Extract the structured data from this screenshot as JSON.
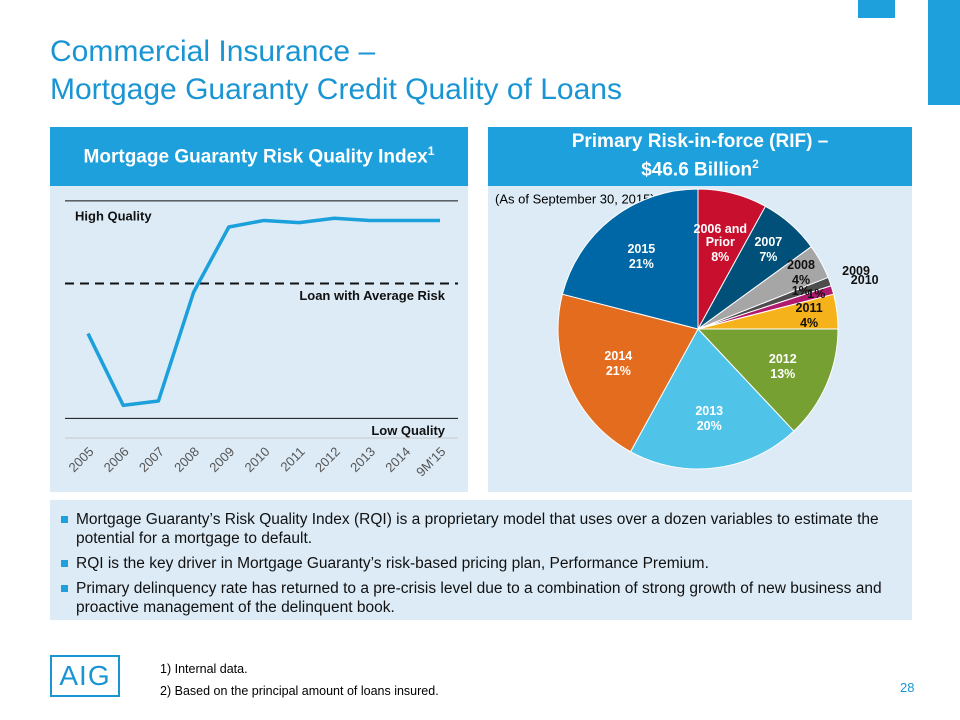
{
  "title": [
    "Commercial Insurance –",
    "Mortgage Guaranty Credit Quality of Loans"
  ],
  "left_panel": {
    "header": "Mortgage Guaranty Risk Quality Index",
    "header_sup": "1"
  },
  "right_panel": {
    "header": [
      "Primary Risk-in-force (RIF) –",
      "$46.6 Billion"
    ],
    "header_sup": "2"
  },
  "chart_data": [
    {
      "type": "line",
      "categories": [
        "2005",
        "2006",
        "2007",
        "2008",
        "2009",
        "2010",
        "2011",
        "2012",
        "2013",
        "2014",
        "9M'15"
      ],
      "values": [
        39,
        6,
        8,
        58,
        88,
        91,
        90,
        92,
        91,
        91,
        91
      ],
      "color": "#1ba0dc",
      "ylim": [
        -9,
        105
      ],
      "reference_lines": [
        {
          "label": "High Quality",
          "value": 100,
          "style": "solid"
        },
        {
          "label": "Loan with Average Risk",
          "value": 62,
          "style": "dashed"
        },
        {
          "label": "Low Quality",
          "value": 0,
          "style": "solid"
        }
      ]
    },
    {
      "type": "pie",
      "subtitle": "(As of September 30, 2015)",
      "categories": [
        "2006 and Prior",
        "2007",
        "2008",
        "2009",
        "2010",
        "2011",
        "2012",
        "2013",
        "2014",
        "2015"
      ],
      "values": [
        8,
        7,
        4,
        1,
        1,
        4,
        13,
        20,
        21,
        21
      ],
      "value_labels": [
        "8%",
        "7%",
        "4%",
        "1%",
        "1%",
        "4%",
        "13%",
        "20%",
        "21%",
        "21%"
      ],
      "colors": [
        "#c8102e",
        "#00507a",
        "#a6a6a6",
        "#4d4d4d",
        "#b0196e",
        "#f5b21b",
        "#77a033",
        "#4fc3e8",
        "#e46c1e",
        "#0067a6"
      ]
    }
  ],
  "bullets": [
    "Mortgage Guaranty’s Risk Quality Index (RQI) is a proprietary model that uses over a dozen variables to estimate the potential for a mortgage to default.",
    "RQI is the key driver in Mortgage Guaranty’s risk-based pricing plan, Performance Premium.",
    "Primary delinquency rate has returned to a pre-crisis level due to a combination of strong growth of new business and proactive management of the delinquent book."
  ],
  "footnotes": [
    {
      "marker": "1)",
      "text": "Internal data."
    },
    {
      "marker": "2)",
      "text": "Based on the principal amount of loans insured."
    }
  ],
  "logo": "AIG",
  "page_number": "28"
}
